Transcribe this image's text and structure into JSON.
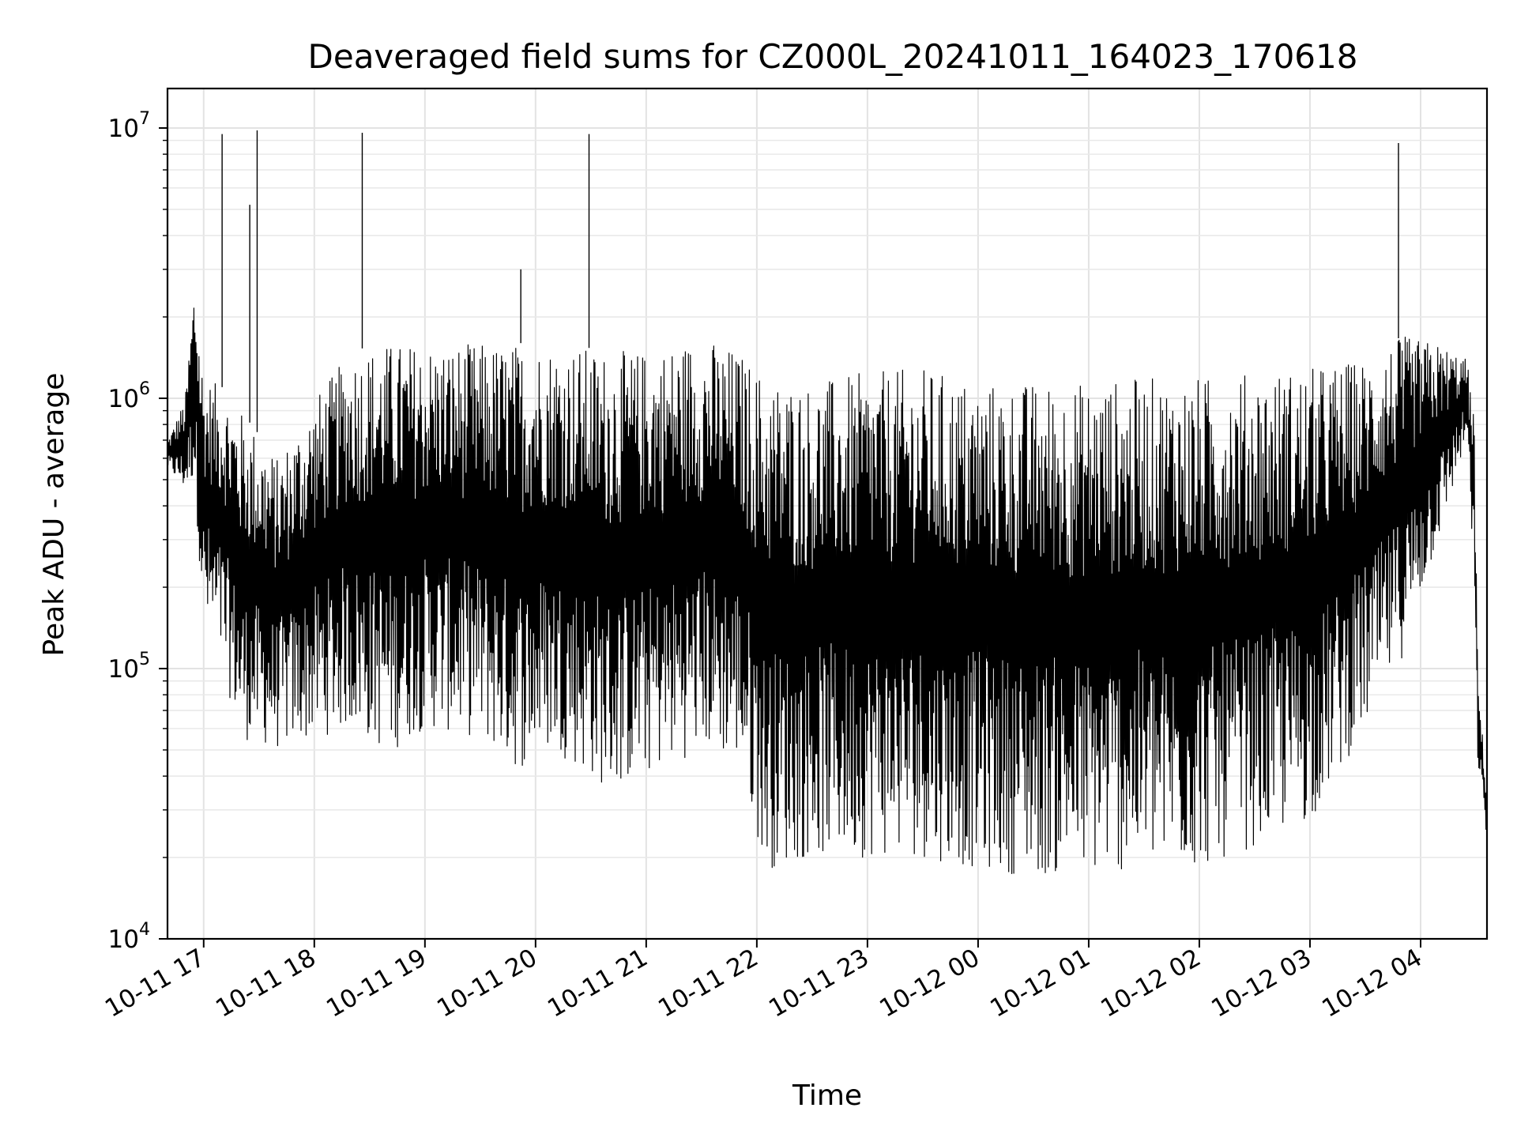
{
  "chart_data": {
    "type": "line",
    "title": "Deaveraged field sums for CZ000L_20241011_164023_170618",
    "xlabel": "Time",
    "ylabel": "Peak ADU - average",
    "yscale": "log",
    "ylim": [
      10000,
      14000000
    ],
    "xlim": [
      "2024-10-11T16:40:23",
      "2024-10-12T04:36:00"
    ],
    "x_ticks": [
      "10-11 17",
      "10-11 18",
      "10-11 19",
      "10-11 20",
      "10-11 21",
      "10-11 22",
      "10-11 23",
      "10-12 00",
      "10-12 01",
      "10-12 02",
      "10-12 03",
      "10-12 04"
    ],
    "y_ticks": [
      {
        "value": 10000,
        "base": "10",
        "exp": "4"
      },
      {
        "value": 100000,
        "base": "10",
        "exp": "5"
      },
      {
        "value": 1000000,
        "base": "10",
        "exp": "6"
      },
      {
        "value": 10000000,
        "base": "10",
        "exp": "7"
      }
    ],
    "grid": true,
    "line_color": "#000000",
    "series": [
      {
        "envelope": [
          {
            "t": "2024-10-11T16:40:23",
            "low": 550000,
            "high": 700000
          },
          {
            "t": "2024-10-11T16:50:00",
            "low": 450000,
            "high": 1000000
          },
          {
            "t": "2024-10-11T16:55:00",
            "low": 500000,
            "high": 2800000
          },
          {
            "t": "2024-10-11T17:00:00",
            "low": 140000,
            "high": 1200000
          },
          {
            "t": "2024-10-11T17:10:00",
            "low": 100000,
            "high": 1100000
          },
          {
            "t": "2024-10-11T17:20:00",
            "low": 55000,
            "high": 900000
          },
          {
            "t": "2024-10-11T17:40:00",
            "low": 50000,
            "high": 600000
          },
          {
            "t": "2024-10-11T18:00:00",
            "low": 55000,
            "high": 1000000
          },
          {
            "t": "2024-10-11T18:20:00",
            "low": 60000,
            "high": 1500000
          },
          {
            "t": "2024-10-11T18:40:00",
            "low": 48000,
            "high": 1600000
          },
          {
            "t": "2024-10-11T19:00:00",
            "low": 60000,
            "high": 1600000
          },
          {
            "t": "2024-10-11T19:30:00",
            "low": 55000,
            "high": 1600000
          },
          {
            "t": "2024-10-11T19:50:00",
            "low": 42000,
            "high": 1600000
          },
          {
            "t": "2024-10-11T20:10:00",
            "low": 50000,
            "high": 1600000
          },
          {
            "t": "2024-10-11T20:40:00",
            "low": 35000,
            "high": 1500000
          },
          {
            "t": "2024-10-11T21:00:00",
            "low": 40000,
            "high": 1500000
          },
          {
            "t": "2024-10-11T21:30:00",
            "low": 50000,
            "high": 1700000
          },
          {
            "t": "2024-10-11T21:50:00",
            "low": 45000,
            "high": 1500000
          },
          {
            "t": "2024-10-11T22:05:00",
            "low": 18000,
            "high": 1200000
          },
          {
            "t": "2024-10-11T22:30:00",
            "low": 20000,
            "high": 1150000
          },
          {
            "t": "2024-10-11T23:00:00",
            "low": 20000,
            "high": 1250000
          },
          {
            "t": "2024-10-11T23:30:00",
            "low": 20000,
            "high": 1300000
          },
          {
            "t": "2024-10-12T00:00:00",
            "low": 18000,
            "high": 1150000
          },
          {
            "t": "2024-10-12T00:30:00",
            "low": 17000,
            "high": 1150000
          },
          {
            "t": "2024-10-12T01:00:00",
            "low": 17000,
            "high": 1150000
          },
          {
            "t": "2024-10-12T01:30:00",
            "low": 18000,
            "high": 1200000
          },
          {
            "t": "2024-10-12T02:00:00",
            "low": 18000,
            "high": 1200000
          },
          {
            "t": "2024-10-12T02:30:00",
            "low": 22000,
            "high": 1250000
          },
          {
            "t": "2024-10-12T03:00:00",
            "low": 27000,
            "high": 1300000
          },
          {
            "t": "2024-10-12T03:30:00",
            "low": 60000,
            "high": 1400000
          },
          {
            "t": "2024-10-12T03:50:00",
            "low": 110000,
            "high": 1700000
          },
          {
            "t": "2024-10-12T04:10:00",
            "low": 300000,
            "high": 1600000
          },
          {
            "t": "2024-10-12T04:25:00",
            "low": 700000,
            "high": 1400000
          },
          {
            "t": "2024-10-12T04:29:00",
            "low": 200000,
            "high": 900000
          },
          {
            "t": "2024-10-12T04:31:00",
            "low": 45000,
            "high": 95000
          },
          {
            "t": "2024-10-12T04:36:00",
            "low": 23000,
            "high": 35000
          }
        ],
        "spikes": [
          {
            "t": "2024-10-11T17:10:00",
            "value": 9500000
          },
          {
            "t": "2024-10-11T17:25:00",
            "value": 5200000
          },
          {
            "t": "2024-10-11T17:29:00",
            "value": 9800000
          },
          {
            "t": "2024-10-11T18:26:00",
            "value": 9600000
          },
          {
            "t": "2024-10-11T19:52:00",
            "value": 3000000
          },
          {
            "t": "2024-10-11T20:29:00",
            "value": 9500000
          },
          {
            "t": "2024-10-12T03:48:00",
            "value": 8800000
          }
        ]
      }
    ]
  }
}
